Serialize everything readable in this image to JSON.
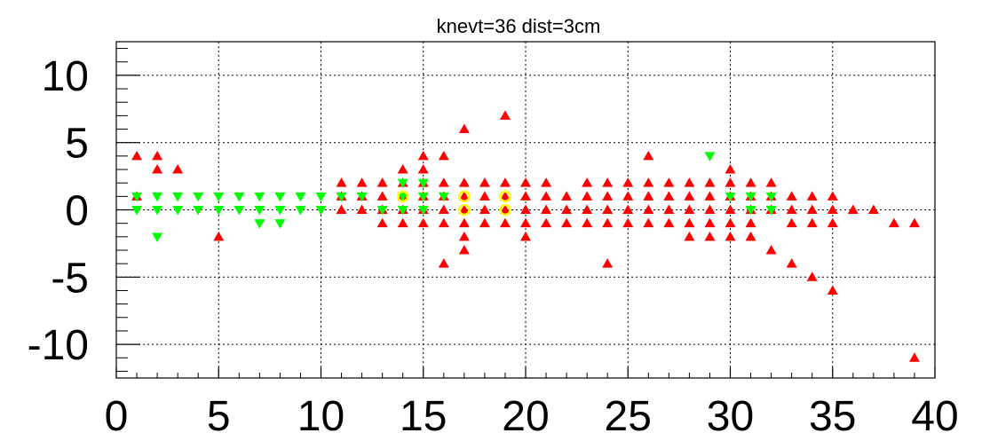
{
  "chart_data": {
    "type": "scatter",
    "title": "knevt=36 dist=3cm",
    "xlim": [
      0,
      40
    ],
    "ylim": [
      -12.5,
      12.5
    ],
    "x_ticks": [
      "0",
      "5",
      "10",
      "15",
      "20",
      "25",
      "30",
      "35",
      "40"
    ],
    "y_ticks": [
      "-10",
      "-5",
      "0",
      "5",
      "10"
    ],
    "grid": true,
    "colors": {
      "up": "#ff0000",
      "down": "#00ff00",
      "circle": "#ffff00"
    },
    "series": [
      {
        "marker": "triangle-up",
        "color": "#ff0000",
        "points": [
          [
            1,
            4
          ],
          [
            1,
            1
          ],
          [
            2,
            4
          ],
          [
            2,
            3
          ],
          [
            3,
            3
          ],
          [
            5,
            -2
          ],
          [
            11,
            2
          ],
          [
            11,
            1
          ],
          [
            11,
            0
          ],
          [
            12,
            2
          ],
          [
            12,
            1
          ],
          [
            12,
            0
          ],
          [
            13,
            2
          ],
          [
            13,
            1
          ],
          [
            13,
            0
          ],
          [
            13,
            -1
          ],
          [
            14,
            3
          ],
          [
            14,
            2
          ],
          [
            14,
            1
          ],
          [
            14,
            0
          ],
          [
            14,
            -1
          ],
          [
            15,
            4
          ],
          [
            15,
            3
          ],
          [
            15,
            2
          ],
          [
            15,
            1
          ],
          [
            15,
            0
          ],
          [
            15,
            -1
          ],
          [
            16,
            4
          ],
          [
            16,
            2
          ],
          [
            16,
            1
          ],
          [
            16,
            0
          ],
          [
            16,
            -1
          ],
          [
            16,
            -4
          ],
          [
            17,
            6
          ],
          [
            17,
            2
          ],
          [
            17,
            1
          ],
          [
            17,
            0
          ],
          [
            17,
            -1
          ],
          [
            17,
            -2
          ],
          [
            17,
            -3
          ],
          [
            18,
            2
          ],
          [
            18,
            1
          ],
          [
            18,
            0
          ],
          [
            18,
            -1
          ],
          [
            19,
            7
          ],
          [
            19,
            2
          ],
          [
            19,
            1
          ],
          [
            19,
            0
          ],
          [
            19,
            -1
          ],
          [
            20,
            2
          ],
          [
            20,
            1
          ],
          [
            20,
            0
          ],
          [
            20,
            -1
          ],
          [
            20,
            -2
          ],
          [
            21,
            2
          ],
          [
            21,
            1
          ],
          [
            21,
            0
          ],
          [
            21,
            -1
          ],
          [
            22,
            1
          ],
          [
            22,
            0
          ],
          [
            22,
            -1
          ],
          [
            23,
            2
          ],
          [
            23,
            1
          ],
          [
            23,
            0
          ],
          [
            23,
            -1
          ],
          [
            24,
            2
          ],
          [
            24,
            1
          ],
          [
            24,
            0
          ],
          [
            24,
            -1
          ],
          [
            24,
            -4
          ],
          [
            25,
            2
          ],
          [
            25,
            1
          ],
          [
            25,
            0
          ],
          [
            25,
            -1
          ],
          [
            26,
            4
          ],
          [
            26,
            2
          ],
          [
            26,
            1
          ],
          [
            26,
            0
          ],
          [
            26,
            -1
          ],
          [
            27,
            2
          ],
          [
            27,
            1
          ],
          [
            27,
            0
          ],
          [
            27,
            -1
          ],
          [
            28,
            2
          ],
          [
            28,
            1
          ],
          [
            28,
            0
          ],
          [
            28,
            -1
          ],
          [
            28,
            -2
          ],
          [
            29,
            2
          ],
          [
            29,
            1
          ],
          [
            29,
            0
          ],
          [
            29,
            -1
          ],
          [
            29,
            -2
          ],
          [
            30,
            3
          ],
          [
            30,
            2
          ],
          [
            30,
            1
          ],
          [
            30,
            0
          ],
          [
            30,
            -1
          ],
          [
            30,
            -2
          ],
          [
            31,
            2
          ],
          [
            31,
            1
          ],
          [
            31,
            0
          ],
          [
            31,
            -1
          ],
          [
            31,
            -2
          ],
          [
            32,
            2
          ],
          [
            32,
            1
          ],
          [
            32,
            0
          ],
          [
            32,
            -3
          ],
          [
            33,
            1
          ],
          [
            33,
            0
          ],
          [
            33,
            -1
          ],
          [
            33,
            -4
          ],
          [
            34,
            1
          ],
          [
            34,
            0
          ],
          [
            34,
            -1
          ],
          [
            34,
            -5
          ],
          [
            35,
            1
          ],
          [
            35,
            0
          ],
          [
            35,
            -1
          ],
          [
            35,
            -6
          ],
          [
            36,
            0
          ],
          [
            37,
            0
          ],
          [
            38,
            -1
          ],
          [
            39,
            -1
          ],
          [
            39,
            -11
          ]
        ]
      },
      {
        "marker": "triangle-down",
        "color": "#00ff00",
        "points": [
          [
            1,
            1
          ],
          [
            1,
            0
          ],
          [
            2,
            1
          ],
          [
            2,
            0
          ],
          [
            2,
            -2
          ],
          [
            3,
            1
          ],
          [
            3,
            0
          ],
          [
            4,
            1
          ],
          [
            4,
            0
          ],
          [
            5,
            1
          ],
          [
            5,
            0
          ],
          [
            6,
            1
          ],
          [
            6,
            0
          ],
          [
            7,
            1
          ],
          [
            7,
            0
          ],
          [
            7,
            -1
          ],
          [
            8,
            1
          ],
          [
            8,
            0
          ],
          [
            8,
            -1
          ],
          [
            9,
            1
          ],
          [
            9,
            0
          ],
          [
            10,
            1
          ],
          [
            10,
            0
          ],
          [
            11,
            1
          ],
          [
            12,
            1
          ],
          [
            13,
            0
          ],
          [
            14,
            2
          ],
          [
            14,
            1
          ],
          [
            14,
            0
          ],
          [
            15,
            2
          ],
          [
            15,
            1
          ],
          [
            15,
            0
          ],
          [
            16,
            1
          ],
          [
            29,
            4
          ],
          [
            30,
            1
          ],
          [
            31,
            1
          ],
          [
            31,
            0
          ],
          [
            32,
            1
          ],
          [
            32,
            0
          ]
        ]
      },
      {
        "marker": "circle",
        "color": "#ffff00",
        "points": [
          [
            14,
            1
          ],
          [
            17,
            1
          ],
          [
            17,
            0
          ],
          [
            19,
            1
          ],
          [
            19,
            0
          ]
        ]
      }
    ]
  }
}
